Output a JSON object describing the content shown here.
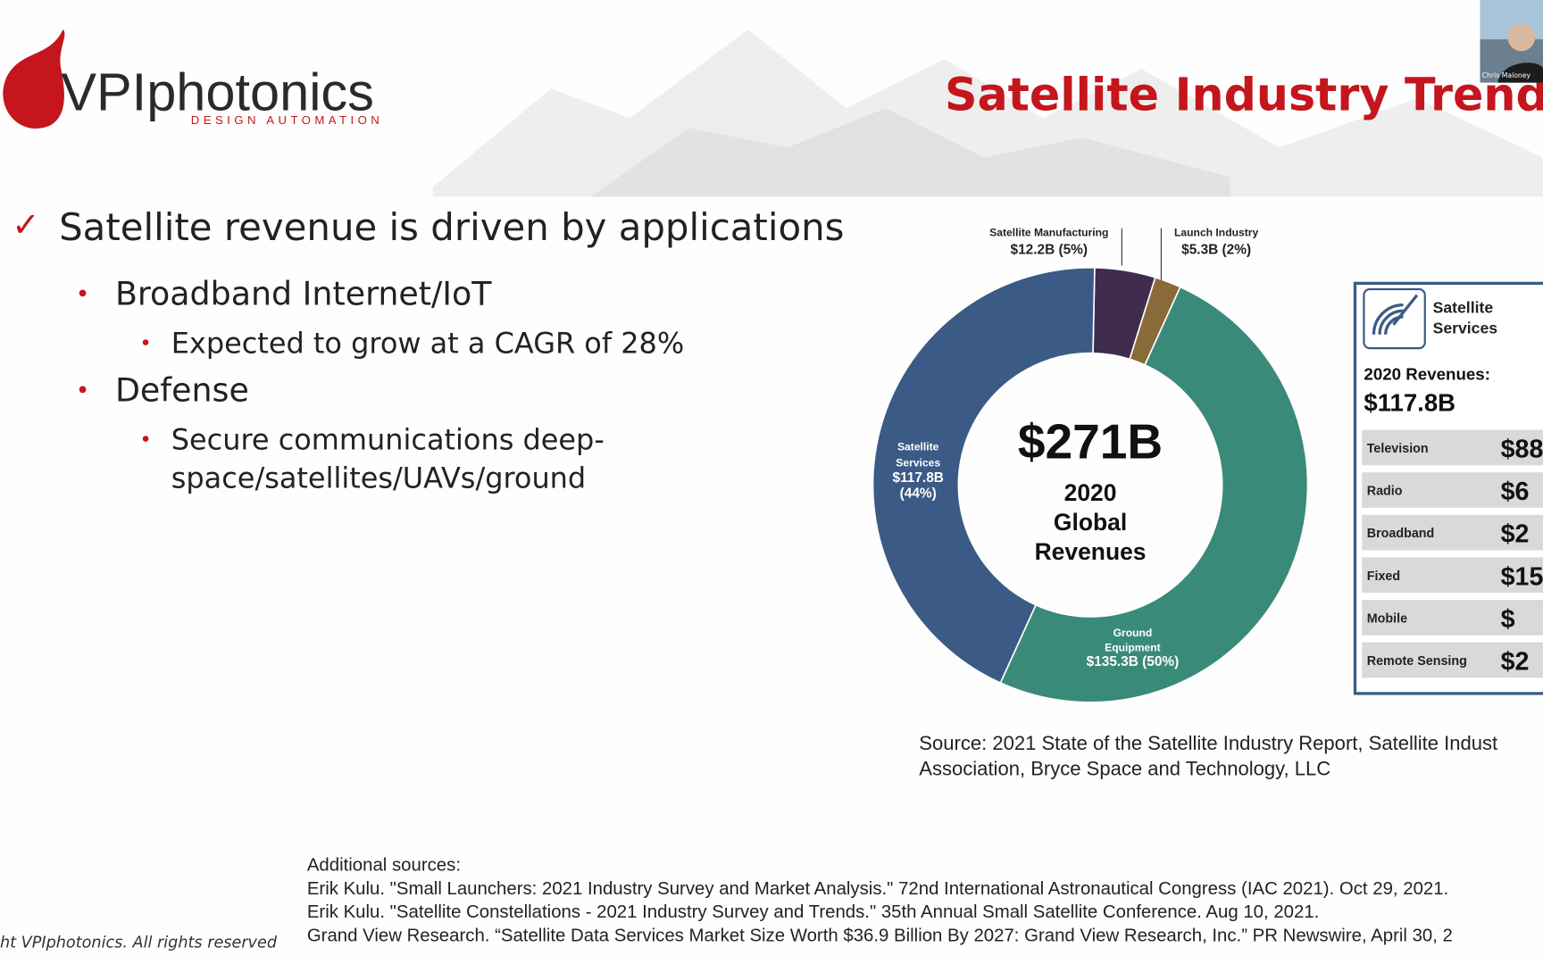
{
  "logo": {
    "name": "VPIphotonics",
    "tagline": "DESIGN AUTOMATION"
  },
  "slide_title": "Satellite Industry Trends",
  "bullets": {
    "main": "Satellite revenue is driven by applications",
    "items": [
      {
        "text": "Broadband Internet/IoT",
        "sub": [
          "Expected to grow at a CAGR of 28%"
        ]
      },
      {
        "text": "Defense",
        "sub": [
          "Secure communications deep-",
          "space/satellites/UAVs/ground"
        ]
      }
    ]
  },
  "donut": {
    "center": {
      "total": "$271B",
      "lines": [
        "2020",
        "Global",
        "Revenues"
      ]
    },
    "segments": [
      {
        "label_lines": [
          "Satellite Manufacturing",
          "$12.2B (5%)"
        ],
        "value": 12.2,
        "color": "#3f2c4e"
      },
      {
        "label_lines": [
          "Launch Industry",
          "$5.3B (2%)"
        ],
        "value": 5.3,
        "color": "#8a6a38"
      },
      {
        "label_lines": [
          "Ground",
          "Equipment",
          "$135.3B (50%)"
        ],
        "value": 135.3,
        "color": "#3a8a79"
      },
      {
        "label_lines": [
          "Satellite",
          "Services",
          "$117.8B",
          "(44%)"
        ],
        "value": 117.8,
        "color": "#3b5b86"
      }
    ]
  },
  "panel": {
    "title_lines": [
      "Satellite",
      "Services"
    ],
    "revenue_label": "2020 Revenues:",
    "revenue": "$117.8B",
    "rows": [
      [
        "Television",
        "$88"
      ],
      [
        "Radio",
        "$6"
      ],
      [
        "Broadband",
        "$2"
      ],
      [
        "Fixed",
        "$15"
      ],
      [
        "Mobile",
        "$"
      ],
      [
        "Remote Sensing",
        "$2"
      ]
    ]
  },
  "source": [
    "Source: 2021 State of the Satellite Industry Report, Satellite Indust",
    "Association, Bryce Space and Technology, LLC"
  ],
  "additional_sources": [
    "Additional sources:",
    "Erik Kulu. \"Small Launchers: 2021 Industry Survey and Market Analysis.\" 72nd International Astronautical Congress (IAC 2021). Oct 29, 2021.",
    "Erik Kulu. \"Satellite Constellations - 2021 Industry Survey and Trends.\" 35th Annual Small Satellite Conference. Aug 10, 2021.",
    "Grand View Research. “Satellite Data Services Market Size Worth $36.9 Billion By 2027: Grand View Research, Inc.” PR Newswire, April 30, 2"
  ],
  "footer": "ht VPIphotonics.  All rights reserved",
  "webcam": {
    "name": "Chris Maloney"
  }
}
